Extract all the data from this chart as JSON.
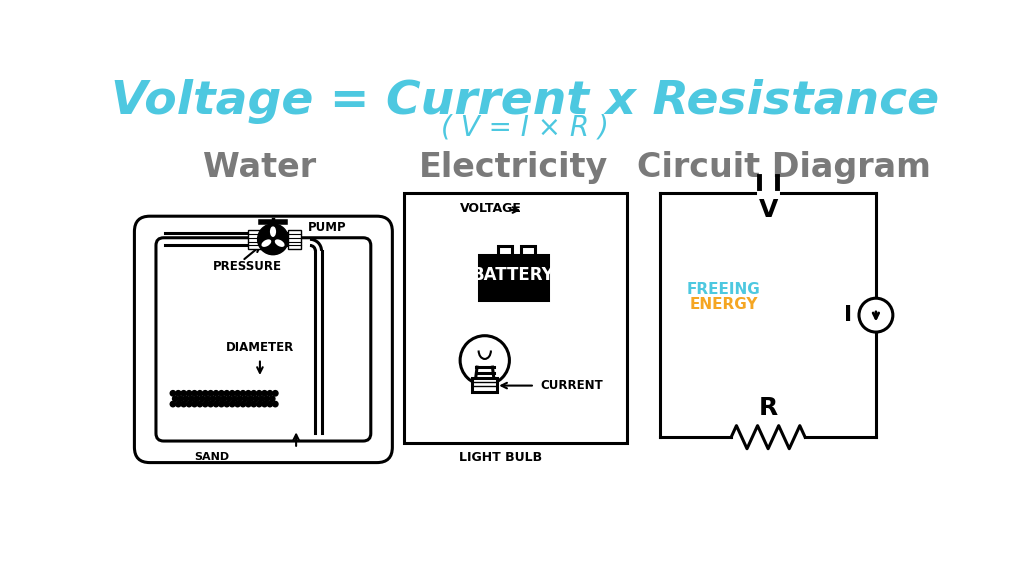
{
  "title_line1": "Voltage = Current x Resistance",
  "title_line2": "( V = I × R )",
  "title_color": "#4DC8E0",
  "section_titles": [
    "Water",
    "Electricity",
    "Circuit Diagram"
  ],
  "section_title_color": "#7a7a7a",
  "bg_color": "#ffffff",
  "freeing_color": "#4DC8E0",
  "energy_color": "#F5A623"
}
